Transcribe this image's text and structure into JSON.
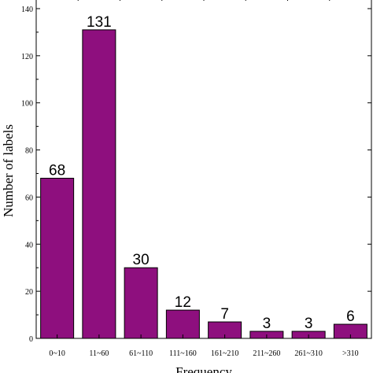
{
  "chart_data": {
    "type": "bar",
    "title": "",
    "xlabel": "Frequency",
    "ylabel": "Number of labels",
    "categories": [
      "0~10",
      "11~60",
      "61~110",
      "111~160",
      "161~210",
      "211~260",
      "261~310",
      ">310"
    ],
    "values": [
      68,
      131,
      30,
      12,
      7,
      3,
      3,
      6
    ],
    "data_labels": [
      "68",
      "131",
      "30",
      "12",
      "7",
      "3",
      "3",
      "6"
    ],
    "ylim": [
      0,
      145
    ],
    "yticks": [
      0,
      20,
      40,
      60,
      80,
      100,
      120,
      140
    ],
    "ytick_labels": [
      "0",
      "20",
      "40",
      "60",
      "80",
      "100",
      "120",
      "140"
    ],
    "grid": false,
    "legend": "none",
    "bar_color": "#8e0f7e"
  }
}
